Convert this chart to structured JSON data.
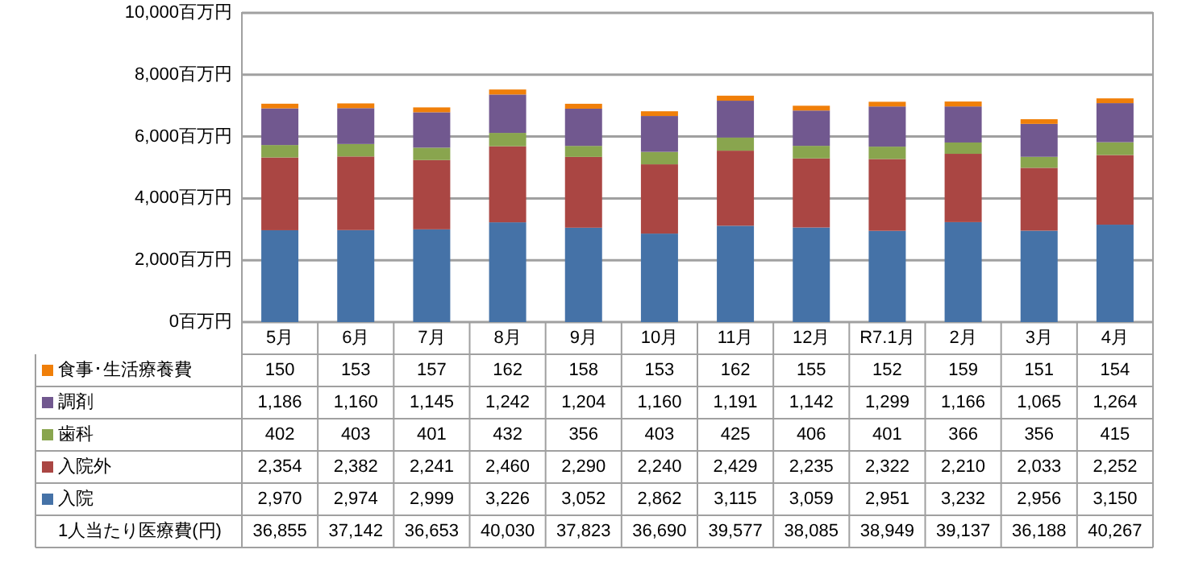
{
  "chart_data": {
    "type": "bar",
    "stacked": true,
    "grid": "y",
    "legend": "bottom",
    "categories": [
      "5月",
      "6月",
      "7月",
      "8月",
      "9月",
      "10月",
      "11月",
      "12月",
      "R7.1月",
      "2月",
      "3月",
      "4月"
    ],
    "ylim": [
      0,
      10000
    ],
    "yticks": [
      {
        "value": 0,
        "label": "0百万円"
      },
      {
        "value": 2000,
        "label": "2,000百万円"
      },
      {
        "value": 4000,
        "label": "4,000百万円"
      },
      {
        "value": 6000,
        "label": "6,000百万円"
      },
      {
        "value": 8000,
        "label": "8,000百万円"
      },
      {
        "value": 10000,
        "label": "10,000百万円"
      }
    ],
    "series": [
      {
        "name": "入院",
        "color": "#4572a7",
        "values": [
          2970,
          2974,
          2999,
          3226,
          3052,
          2862,
          3115,
          3059,
          2951,
          3232,
          2956,
          3150
        ],
        "value_labels": [
          "2,970",
          "2,974",
          "2,999",
          "3,226",
          "3,052",
          "2,862",
          "3,115",
          "3,059",
          "2,951",
          "3,232",
          "2,956",
          "3,150"
        ]
      },
      {
        "name": "入院外",
        "color": "#aa4643",
        "values": [
          2354,
          2382,
          2241,
          2460,
          2290,
          2240,
          2429,
          2235,
          2322,
          2210,
          2033,
          2252
        ],
        "value_labels": [
          "2,354",
          "2,382",
          "2,241",
          "2,460",
          "2,290",
          "2,240",
          "2,429",
          "2,235",
          "2,322",
          "2,210",
          "2,033",
          "2,252"
        ]
      },
      {
        "name": "歯科",
        "color": "#89a54e",
        "values": [
          402,
          403,
          401,
          432,
          356,
          403,
          425,
          406,
          401,
          366,
          356,
          415
        ],
        "value_labels": [
          "402",
          "403",
          "401",
          "432",
          "356",
          "403",
          "425",
          "406",
          "401",
          "366",
          "356",
          "415"
        ]
      },
      {
        "name": "調剤",
        "color": "#71588f",
        "values": [
          1186,
          1160,
          1145,
          1242,
          1204,
          1160,
          1191,
          1142,
          1299,
          1166,
          1065,
          1264
        ],
        "value_labels": [
          "1,186",
          "1,160",
          "1,145",
          "1,242",
          "1,204",
          "1,160",
          "1,191",
          "1,142",
          "1,299",
          "1,166",
          "1,065",
          "1,264"
        ]
      },
      {
        "name": "食事･生活療養費",
        "color": "#f07f09",
        "values": [
          150,
          153,
          157,
          162,
          158,
          153,
          162,
          155,
          152,
          159,
          151,
          154
        ],
        "value_labels": [
          "150",
          "153",
          "157",
          "162",
          "158",
          "153",
          "162",
          "155",
          "152",
          "159",
          "151",
          "154"
        ]
      }
    ],
    "annotations": [
      "1人当たり医療費(円)",
      "36,855",
      "37,142",
      "36,653",
      "40,030",
      "37,823",
      "36,690",
      "39,577",
      "38,085",
      "38,949",
      "39,137",
      "36,188",
      "40,267"
    ]
  }
}
